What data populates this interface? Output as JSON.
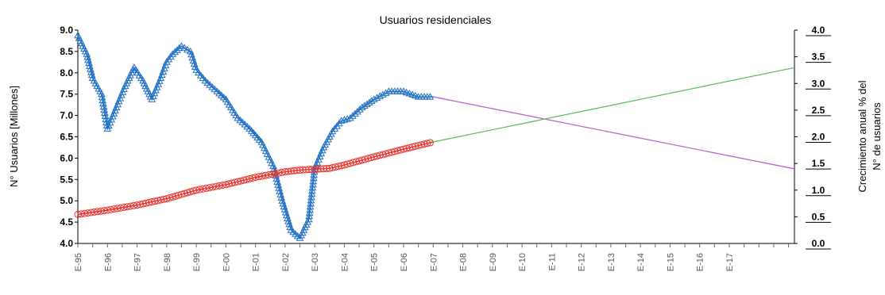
{
  "chart_data": {
    "type": "line",
    "title": "Usuarios residenciales",
    "xlabel": "",
    "ylabel": "N° Usuarios [Millones]",
    "y2label": [
      "Crecimiento anual % del",
      "N° de usuarios"
    ],
    "ylim": [
      4.0,
      9.0
    ],
    "y2lim": [
      0.0,
      4.0
    ],
    "yticks": [
      "4.0",
      "4.5",
      "5.0",
      "5.5",
      "6.0",
      "6.5",
      "7.0",
      "7.5",
      "8.0",
      "8.5",
      "9.0"
    ],
    "y2ticks": [
      "0.0",
      "0.5",
      "1.0",
      "1.5",
      "2.0",
      "2.5",
      "3.0",
      "3.5",
      "4.0"
    ],
    "xlim": [
      1995,
      2019.2
    ],
    "xticks": [
      "E-95",
      "E-96",
      "E-97",
      "E-98",
      "E-99",
      "E-00",
      "E-01",
      "E-02",
      "E-03",
      "E-04",
      "E-05",
      "E-06",
      "E-07",
      "E-08",
      "E-09",
      "E-10",
      "E-11",
      "E-12",
      "E-13",
      "E-14",
      "E-15",
      "E-16",
      "E-17"
    ],
    "grid": false,
    "series": [
      {
        "axis": "right",
        "marker": "triangle",
        "color": "#1f6fc4",
        "x": [
          1995.0,
          1995.3,
          1995.5,
          1995.8,
          1996.0,
          1996.3,
          1996.6,
          1996.9,
          1997.2,
          1997.5,
          1997.8,
          1998.0,
          1998.2,
          1998.5,
          1998.8,
          1999.0,
          1999.3,
          1999.7,
          2000.0,
          2000.4,
          2000.8,
          2001.2,
          2001.6,
          2001.9,
          2002.2,
          2002.5,
          2002.8,
          2003.0,
          2003.3,
          2003.6,
          2003.9,
          2004.2,
          2004.6,
          2005.0,
          2005.5,
          2006.0,
          2006.5,
          2007.0
        ],
        "y": [
          3.9,
          3.55,
          3.1,
          2.8,
          2.15,
          2.55,
          2.95,
          3.3,
          3.05,
          2.7,
          3.1,
          3.4,
          3.55,
          3.7,
          3.6,
          3.25,
          3.05,
          2.85,
          2.7,
          2.35,
          2.15,
          1.9,
          1.45,
          0.8,
          0.25,
          0.1,
          0.45,
          1.4,
          1.8,
          2.1,
          2.3,
          2.35,
          2.55,
          2.7,
          2.85,
          2.85,
          2.75,
          2.75
        ]
      },
      {
        "axis": "right",
        "marker": "none",
        "color": "#bb55cc",
        "style": "projection",
        "x": [
          2007.0,
          2019.2
        ],
        "y": [
          2.75,
          1.4
        ]
      },
      {
        "axis": "left",
        "marker": "circle",
        "color": "#e8312a",
        "x": [
          1995.0,
          1996.0,
          1997.0,
          1998.0,
          1999.0,
          2000.0,
          2001.0,
          2002.0,
          2002.5,
          2003.0,
          2003.5,
          2004.0,
          2005.0,
          2006.0,
          2007.0
        ],
        "y": [
          4.68,
          4.78,
          4.9,
          5.05,
          5.25,
          5.38,
          5.55,
          5.68,
          5.72,
          5.74,
          5.76,
          5.84,
          6.03,
          6.21,
          6.38
        ]
      },
      {
        "axis": "left",
        "marker": "none",
        "color": "#55bb55",
        "style": "projection",
        "x": [
          2007.0,
          2019.2
        ],
        "y": [
          6.38,
          8.12
        ]
      }
    ]
  }
}
